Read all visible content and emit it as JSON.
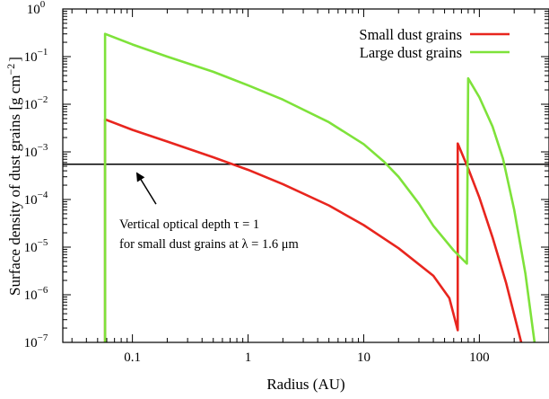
{
  "chart_data": {
    "type": "line",
    "title": "",
    "xlabel": "Radius (AU)",
    "ylabel": "Surface density of dust grains [g cm",
    "ylabel_unit_exponent": "−2",
    "ylabel_close": "]",
    "x_scale": "log",
    "y_scale": "log",
    "xlim": [
      0.025,
      400
    ],
    "ylim": [
      1e-07,
      1
    ],
    "x_ticks": [
      {
        "value": 0.1,
        "label": "0.1"
      },
      {
        "value": 1,
        "label": "1"
      },
      {
        "value": 10,
        "label": "10"
      },
      {
        "value": 100,
        "label": "100"
      }
    ],
    "y_ticks": [
      {
        "value": 1,
        "base": "10",
        "exp": "0"
      },
      {
        "value": 0.1,
        "base": "10",
        "exp": "−1"
      },
      {
        "value": 0.01,
        "base": "10",
        "exp": "−2"
      },
      {
        "value": 0.001,
        "base": "10",
        "exp": "−3"
      },
      {
        "value": 0.0001,
        "base": "10",
        "exp": "−4"
      },
      {
        "value": 1e-05,
        "base": "10",
        "exp": "−5"
      },
      {
        "value": 1e-06,
        "base": "10",
        "exp": "−6"
      },
      {
        "value": 1e-07,
        "base": "10",
        "exp": "−7"
      }
    ],
    "legend_position": "top-right",
    "series": [
      {
        "name": "Small dust grains",
        "color": "#e8251e",
        "points": [
          [
            0.058,
            1e-07
          ],
          [
            0.058,
            0.0048
          ],
          [
            0.1,
            0.0029
          ],
          [
            0.2,
            0.00165
          ],
          [
            0.5,
            0.00077
          ],
          [
            1,
            0.00042
          ],
          [
            2,
            0.00021
          ],
          [
            5,
            7.5e-05
          ],
          [
            10,
            2.9e-05
          ],
          [
            20,
            9.5e-06
          ],
          [
            40,
            2.5e-06
          ],
          [
            55,
            8.5e-07
          ],
          [
            65,
            1.8e-07
          ],
          [
            65,
            0.0015
          ],
          [
            80,
            0.00045
          ],
          [
            100,
            0.00011
          ],
          [
            130,
            1.6e-05
          ],
          [
            170,
            1.8e-06
          ],
          [
            230,
            1e-07
          ]
        ]
      },
      {
        "name": "Large dust grains",
        "color": "#7ee23a",
        "points": [
          [
            0.058,
            1e-07
          ],
          [
            0.058,
            0.3
          ],
          [
            0.1,
            0.18
          ],
          [
            0.2,
            0.1
          ],
          [
            0.5,
            0.048
          ],
          [
            1,
            0.025
          ],
          [
            2,
            0.0125
          ],
          [
            5,
            0.0042
          ],
          [
            10,
            0.00145
          ],
          [
            15,
            0.00062
          ],
          [
            20,
            0.0003
          ],
          [
            30,
            8.2e-05
          ],
          [
            40,
            2.8e-05
          ],
          [
            60,
            8.5e-06
          ],
          [
            78,
            4.5e-06
          ],
          [
            80,
            0.035
          ],
          [
            100,
            0.014
          ],
          [
            130,
            0.0034
          ],
          [
            160,
            0.00072
          ],
          [
            200,
            6.1e-05
          ],
          [
            250,
            2.8e-06
          ],
          [
            300,
            1e-07
          ]
        ]
      }
    ],
    "reference_line": {
      "y": 0.00055,
      "color": "#000000",
      "annotation_line1": "Vertical optical depth τ = 1",
      "annotation_line2": "for small dust grains at λ = 1.6 μm",
      "arrow_from": [
        0.16,
        8e-05
      ],
      "arrow_to": [
        0.11,
        0.00035
      ]
    }
  }
}
